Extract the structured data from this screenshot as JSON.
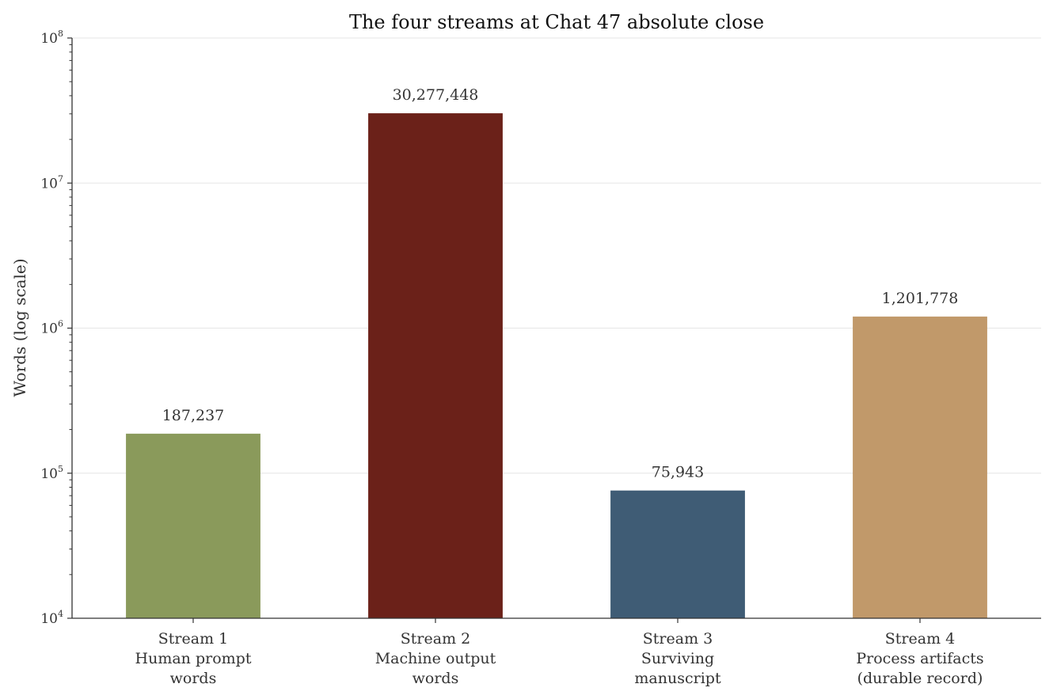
{
  "chart_data": {
    "type": "bar",
    "title": "The four streams at Chat 47 absolute close",
    "xlabel": "",
    "ylabel": "Words (log scale)",
    "yscale": "log",
    "ylim": [
      10000,
      100000000
    ],
    "yticks": [
      {
        "base": "10",
        "exp": "4",
        "value": 10000
      },
      {
        "base": "10",
        "exp": "5",
        "value": 100000
      },
      {
        "base": "10",
        "exp": "6",
        "value": 1000000
      },
      {
        "base": "10",
        "exp": "7",
        "value": 10000000
      },
      {
        "base": "10",
        "exp": "8",
        "value": 100000000
      }
    ],
    "categories": [
      {
        "lines": [
          "Stream 1",
          "Human prompt",
          "words"
        ]
      },
      {
        "lines": [
          "Stream 2",
          "Machine output",
          "words"
        ]
      },
      {
        "lines": [
          "Stream 3",
          "Surviving",
          "manuscript"
        ]
      },
      {
        "lines": [
          "Stream 4",
          "Process artifacts",
          "(durable record)"
        ]
      }
    ],
    "values": [
      187237,
      30277448,
      75943,
      1201778
    ],
    "value_labels": [
      "187,237",
      "30,277,448",
      "75,943",
      "1,201,778"
    ],
    "colors": [
      "#8a9a5b",
      "#6b2119",
      "#3f5c75",
      "#c1996a"
    ],
    "grid": "horizontal major",
    "legend": "none"
  }
}
